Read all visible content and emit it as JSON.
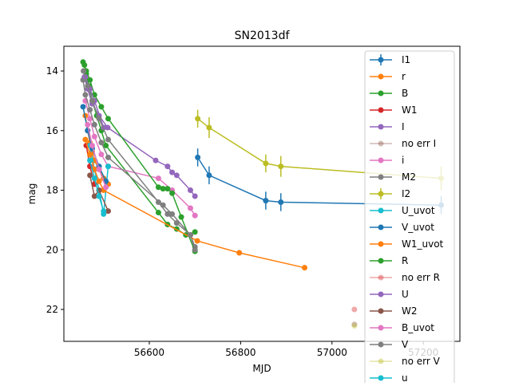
{
  "chart_data": {
    "type": "errorbar",
    "title": "SN2013df",
    "xlabel": "MJD",
    "ylabel": "mag",
    "xlim": [
      56413,
      57280
    ],
    "xticks": [
      56600,
      56800,
      57000,
      57200
    ],
    "ylim": [
      13.17,
      23.07
    ],
    "yticks": [
      14,
      16,
      18,
      20,
      22
    ],
    "invert_y": true,
    "legend": "upper right",
    "series": [
      {
        "name": "I1",
        "color": "#1f77b4",
        "x": [
          56706,
          56731,
          56855,
          56888,
          57239
        ],
        "values": [
          16.9,
          17.5,
          18.35,
          18.4,
          18.5
        ],
        "yerr": [
          0.3,
          0.3,
          0.3,
          0.3,
          0.3
        ]
      },
      {
        "name": "r",
        "color": "#ff7f0e",
        "x": [
          56460,
          56465,
          56470,
          56475,
          56480,
          56490,
          56500,
          56510
        ],
        "values": [
          15.5,
          16.0,
          16.4,
          16.7,
          17.0,
          17.3,
          17.6,
          17.8
        ]
      },
      {
        "name": "B",
        "color": "#2ca02c",
        "x": [
          56458,
          56462,
          56468,
          56475,
          56485,
          56495,
          56505,
          56620,
          56640,
          56660,
          56680,
          56700
        ],
        "values": [
          13.8,
          14.1,
          14.5,
          15.0,
          15.5,
          16.0,
          16.5,
          18.75,
          19.15,
          19.3,
          19.5,
          19.4
        ]
      },
      {
        "name": "W1",
        "color": "#d62728",
        "x": [
          56462,
          56470,
          56480
        ],
        "values": [
          16.5,
          17.2,
          17.8
        ]
      },
      {
        "name": "I",
        "color": "#9467bd",
        "x": [
          56458,
          56465,
          56475,
          56490,
          56509,
          56614,
          56640,
          56650,
          56660,
          56690,
          56700
        ],
        "values": [
          14.2,
          14.6,
          15.1,
          15.5,
          15.9,
          17.0,
          17.2,
          17.4,
          17.5,
          18.0,
          18.2
        ]
      },
      {
        "name": "no err I",
        "color": "#8c564b",
        "alpha": 0.4,
        "x": [
          57049
        ],
        "values": [
          22.5
        ]
      },
      {
        "name": "i",
        "color": "#e377c2",
        "x": [
          56460,
          56470,
          56480,
          56495,
          56510,
          56620,
          56650,
          56690,
          56700
        ],
        "values": [
          15.0,
          15.6,
          16.2,
          16.8,
          17.2,
          17.6,
          18.0,
          18.6,
          18.85
        ]
      },
      {
        "name": "M2",
        "color": "#7f7f7f",
        "x": [
          56455,
          56460,
          56470,
          56480,
          56495,
          56510,
          56630,
          56650,
          56690,
          56700
        ],
        "values": [
          14.3,
          14.8,
          15.3,
          15.8,
          16.4,
          16.9,
          18.5,
          18.8,
          19.5,
          19.9
        ]
      },
      {
        "name": "I2",
        "color": "#bcbd22",
        "x": [
          56706,
          56731,
          56855,
          56888,
          57239
        ],
        "values": [
          15.6,
          15.9,
          17.1,
          17.2,
          17.6
        ],
        "yerr": [
          0.3,
          0.35,
          0.3,
          0.35,
          0.4
        ]
      },
      {
        "name": "U_uvot",
        "color": "#17becf",
        "x": [
          56470,
          56480,
          56490,
          56500,
          56510
        ],
        "values": [
          16.5,
          17.3,
          18.0,
          18.8,
          17.2
        ]
      },
      {
        "name": "V_uvot",
        "color": "#1f77b4",
        "x": [
          56455,
          56465,
          56475,
          56490,
          56505
        ],
        "values": [
          15.2,
          16.0,
          16.6,
          17.2,
          17.7
        ]
      },
      {
        "name": "W1_uvot",
        "color": "#ff7f0e",
        "x": [
          56460,
          56470,
          56480,
          56490,
          56500,
          56705,
          56797,
          56940
        ],
        "values": [
          16.3,
          16.8,
          17.3,
          17.7,
          18.0,
          19.7,
          20.1,
          20.6
        ]
      },
      {
        "name": "R",
        "color": "#2ca02c",
        "x": [
          56455,
          56462,
          56470,
          56480,
          56495,
          56510,
          56620,
          56630,
          56640,
          56650,
          56670,
          56700
        ],
        "values": [
          13.7,
          14.0,
          14.3,
          14.8,
          15.2,
          15.6,
          17.9,
          17.95,
          17.95,
          18.1,
          18.9,
          20.05
        ]
      },
      {
        "name": "no err R",
        "color": "#d62728",
        "alpha": 0.4,
        "x": [
          57049
        ],
        "values": [
          22.0
        ]
      },
      {
        "name": "U",
        "color": "#9467bd",
        "x": [
          56460,
          56470,
          56480,
          56500
        ],
        "values": [
          14.2,
          14.6,
          15.0,
          15.9
        ]
      },
      {
        "name": "W2",
        "color": "#8c564b",
        "x": [
          56470,
          56480,
          56490,
          56510
        ],
        "values": [
          17.5,
          18.2,
          18.0,
          18.7
        ]
      },
      {
        "name": "B_uvot",
        "color": "#e377c2",
        "x": [
          56465,
          56475,
          56490,
          56505
        ],
        "values": [
          15.8,
          16.5,
          17.3,
          17.9
        ]
      },
      {
        "name": "V",
        "color": "#7f7f7f",
        "x": [
          56456,
          56465,
          56475,
          56490,
          56510,
          56620,
          56640,
          56660,
          56690,
          56700
        ],
        "values": [
          14.0,
          14.5,
          15.0,
          15.6,
          16.3,
          18.4,
          18.8,
          19.1,
          19.5,
          20.0
        ]
      },
      {
        "name": "no err V",
        "color": "#bcbd22",
        "alpha": 0.4,
        "x": [
          57049
        ],
        "values": [
          22.55
        ]
      },
      {
        "name": "u",
        "color": "#17becf",
        "x": [
          56470,
          56480,
          56490,
          56500
        ],
        "values": [
          17.0,
          17.6,
          18.2,
          18.7
        ]
      }
    ]
  }
}
